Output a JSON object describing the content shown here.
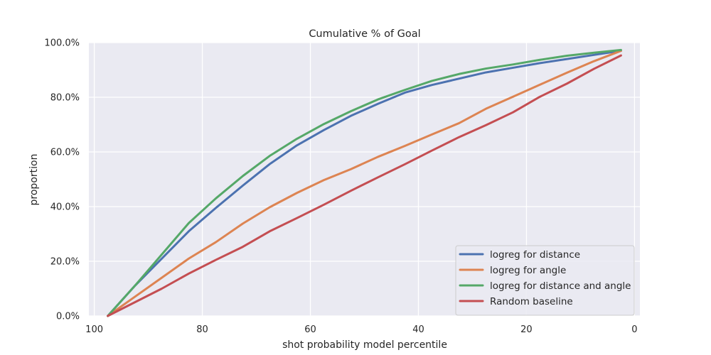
{
  "chart_data": {
    "type": "line",
    "title": "Cumulative % of Goal",
    "xlabel": "shot probability model percentile",
    "ylabel": "proportion",
    "xlim": [
      101,
      -1
    ],
    "ylim": [
      0,
      1
    ],
    "x_inverted": true,
    "grid": true,
    "legend_position": "lower-right",
    "xticks": [
      100,
      80,
      60,
      40,
      20,
      0
    ],
    "xtick_labels": [
      "100",
      "80",
      "60",
      "40",
      "20",
      "0"
    ],
    "yticks": [
      0,
      0.2,
      0.4,
      0.6,
      0.8,
      1.0
    ],
    "ytick_labels": [
      "0.0%",
      "20.0%",
      "40.0%",
      "60.0%",
      "80.0%",
      "100.0%"
    ],
    "x": [
      97.5,
      92.5,
      87.5,
      82.5,
      77.5,
      72.5,
      67.5,
      62.5,
      57.5,
      52.5,
      47.5,
      42.5,
      37.5,
      32.5,
      27.5,
      22.5,
      17.5,
      12.5,
      7.5,
      2.5
    ],
    "series": [
      {
        "name": "logreg for distance",
        "color": "#4c72b0",
        "values": [
          0.0,
          0.11,
          0.21,
          0.31,
          0.395,
          0.477,
          0.556,
          0.624,
          0.68,
          0.732,
          0.776,
          0.817,
          0.845,
          0.868,
          0.891,
          0.908,
          0.925,
          0.94,
          0.955,
          0.97
        ]
      },
      {
        "name": "logreg for angle",
        "color": "#dd8452",
        "values": [
          0.0,
          0.07,
          0.14,
          0.21,
          0.27,
          0.338,
          0.398,
          0.45,
          0.497,
          0.537,
          0.582,
          0.622,
          0.664,
          0.705,
          0.758,
          0.802,
          0.846,
          0.89,
          0.932,
          0.97
        ]
      },
      {
        "name": "logreg for distance and angle",
        "color": "#55a868",
        "values": [
          0.0,
          0.11,
          0.225,
          0.34,
          0.43,
          0.512,
          0.586,
          0.648,
          0.702,
          0.749,
          0.792,
          0.827,
          0.86,
          0.885,
          0.905,
          0.92,
          0.937,
          0.952,
          0.963,
          0.973
        ]
      },
      {
        "name": "Random baseline",
        "color": "#c44e52",
        "values": [
          0.0,
          0.05,
          0.1,
          0.155,
          0.205,
          0.253,
          0.31,
          0.358,
          0.407,
          0.458,
          0.507,
          0.555,
          0.605,
          0.654,
          0.698,
          0.745,
          0.802,
          0.85,
          0.904,
          0.953
        ]
      }
    ]
  }
}
